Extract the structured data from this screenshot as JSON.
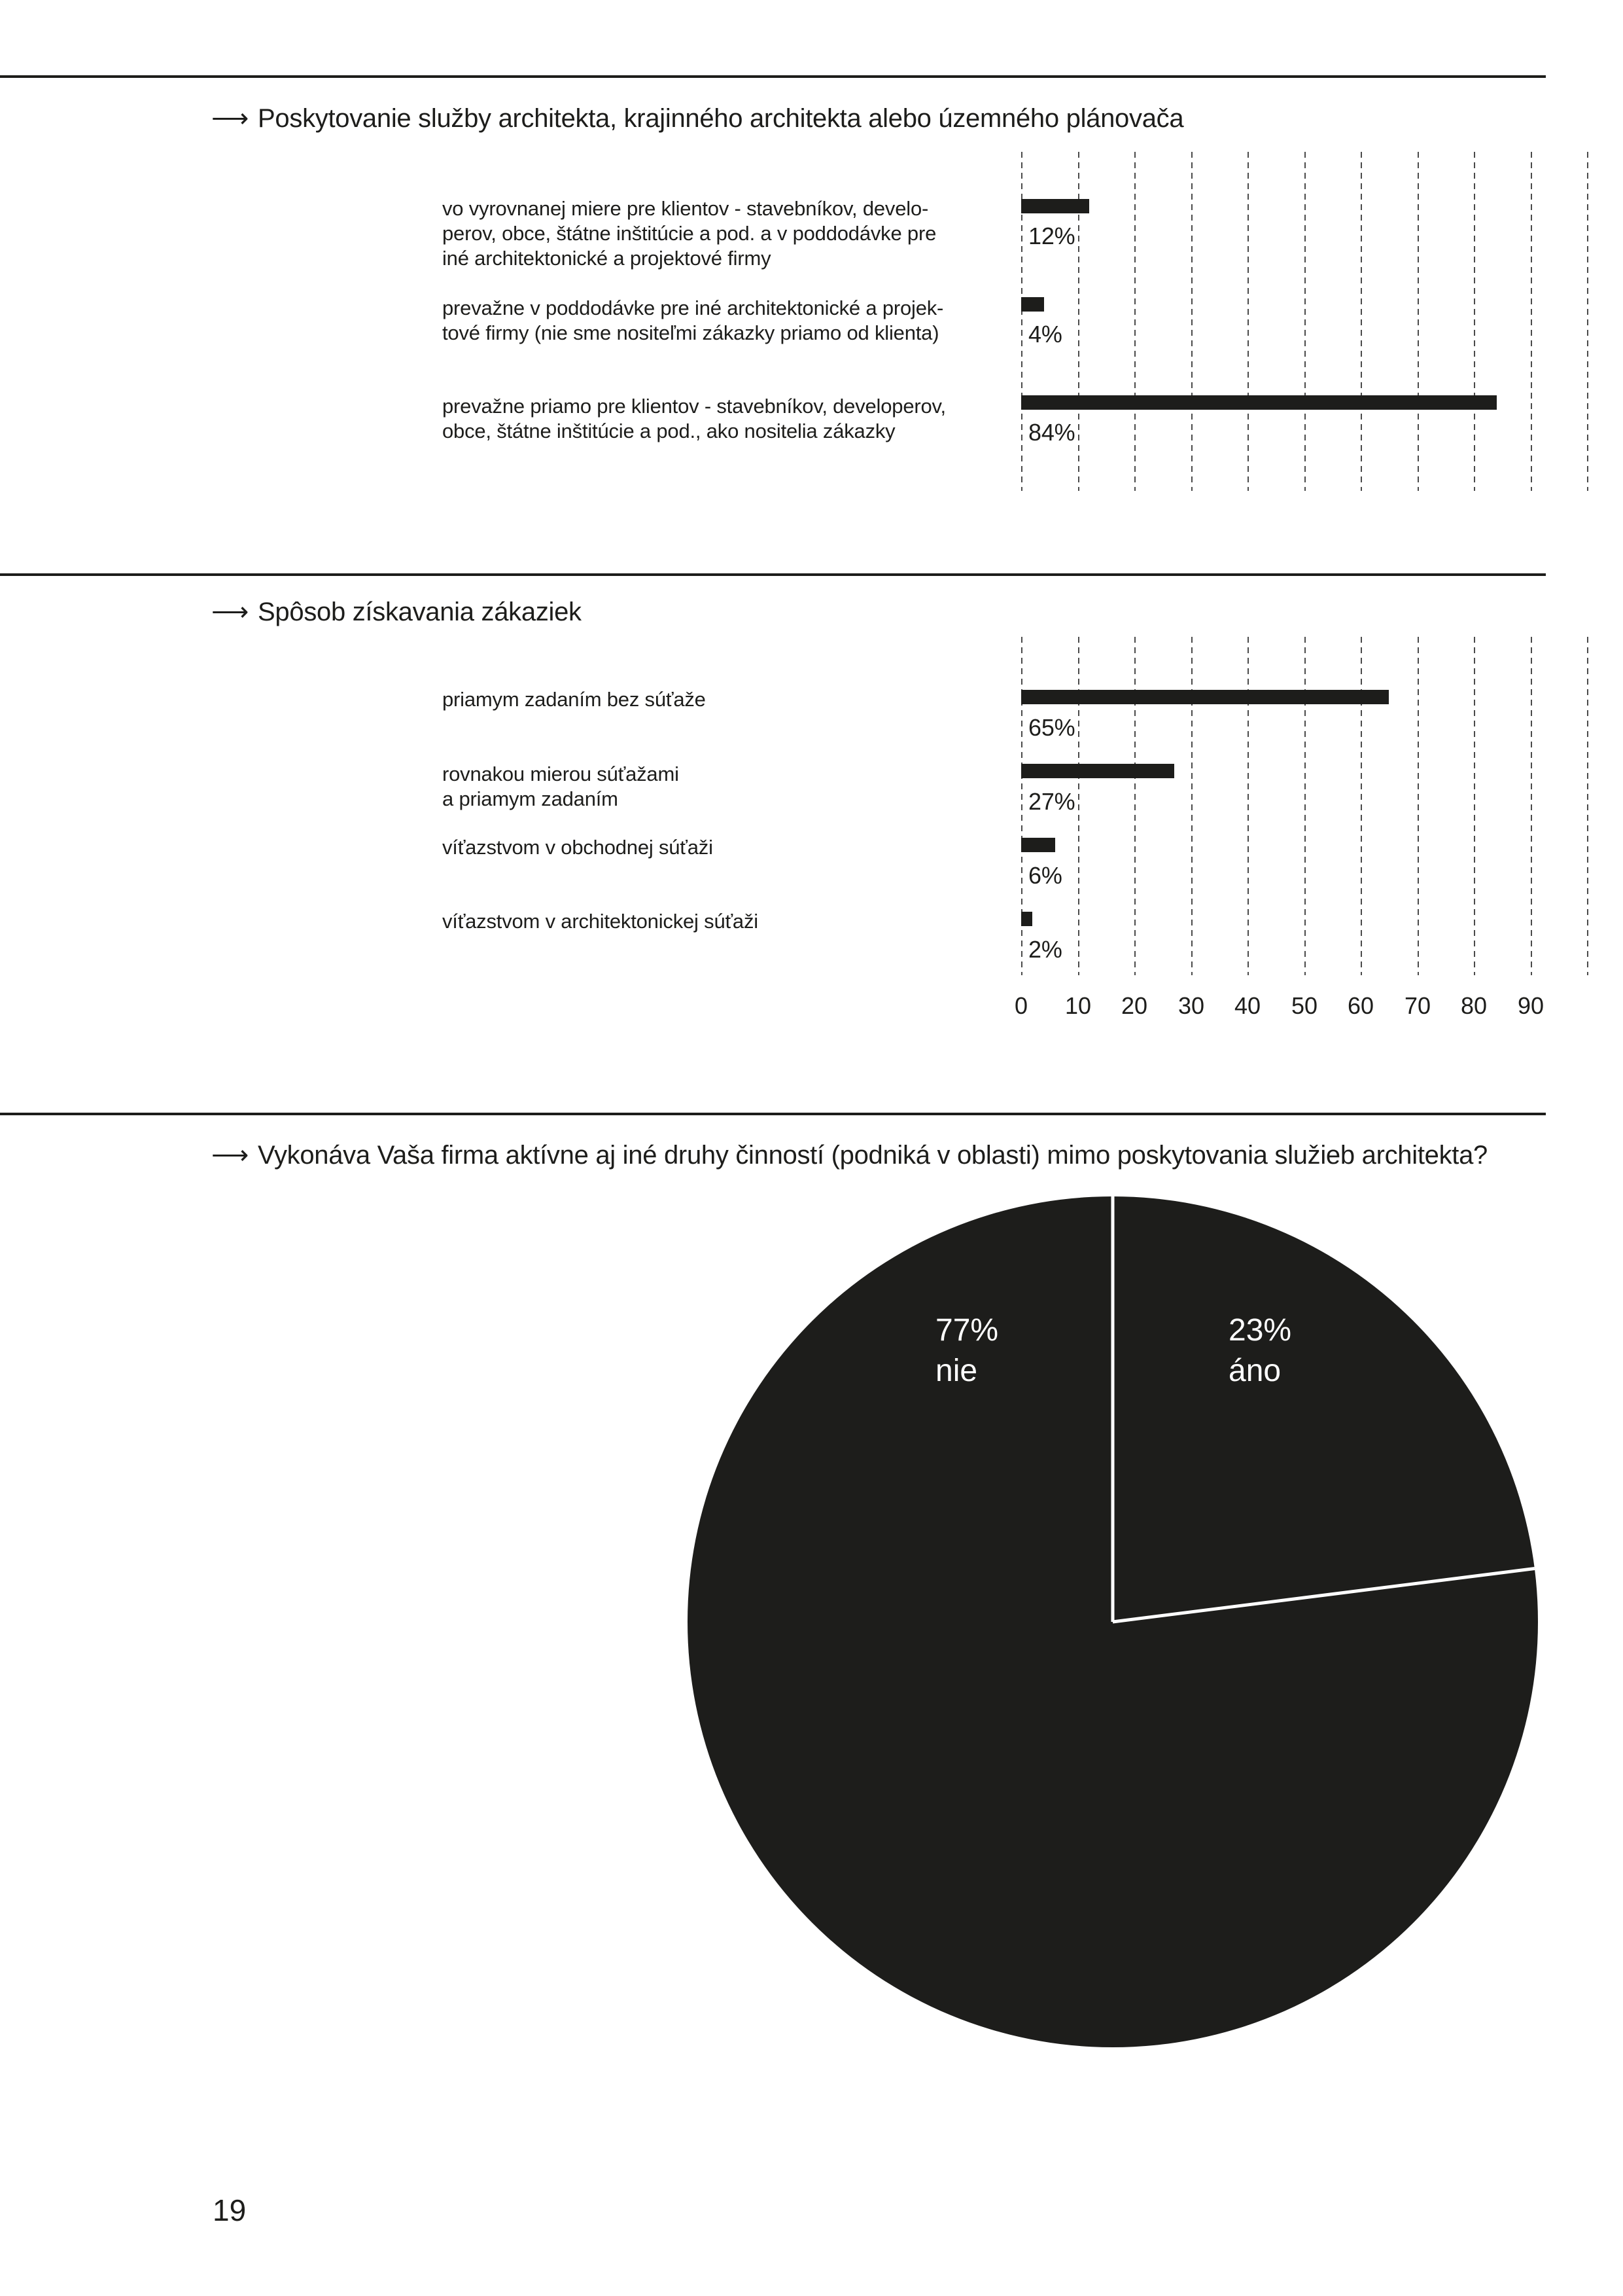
{
  "page": {
    "number": "19",
    "arrow": "⟶"
  },
  "colors": {
    "ink": "#1d1d1b",
    "grid_dash": "#4a4a4a",
    "pie_fill": "#1d1d1b",
    "pie_divider": "#ffffff",
    "background": "#ffffff"
  },
  "chart_data": [
    {
      "type": "bar",
      "orientation": "horizontal",
      "title": "Poskytovanie služby architekta, krajinného architekta alebo územného plánovača",
      "categories": [
        "vo vyrovnanej miere pre klientov - stavebníkov, develo-\nperov, obce, štátne inštitúcie a pod. a v poddodávke pre\niné architektonické a projektové firmy",
        "prevažne v poddodávke pre iné architektonické a projek-\ntové firmy (nie sme nositeľmi zákazky priamo od klienta)",
        "prevažne priamo pre klientov - stavebníkov, developerov,\nobce, štátne inštitúcie a pod., ako nositelia zákazky"
      ],
      "values": [
        12,
        4,
        84
      ],
      "value_labels": [
        "12%",
        "4%",
        "84%"
      ],
      "unit": "%",
      "xlim": [
        0,
        100
      ],
      "grid_step": 10,
      "grid": true,
      "xticks_visible": false
    },
    {
      "type": "bar",
      "orientation": "horizontal",
      "title": "Spôsob získavania zákaziek",
      "categories": [
        "priamym zadaním bez súťaže",
        "rovnakou mierou súťažami\na priamym zadaním",
        "víťazstvom v obchodnej súťaži",
        "víťazstvom v architektonickej súťaži"
      ],
      "values": [
        65,
        27,
        6,
        2
      ],
      "value_labels": [
        "65%",
        "27%",
        "6%",
        "2%"
      ],
      "unit": "%",
      "xlim": [
        0,
        100
      ],
      "grid_step": 10,
      "grid": true,
      "xticks_visible": true,
      "xticks": [
        0,
        10,
        20,
        30,
        40,
        50,
        60,
        70,
        80,
        90
      ]
    },
    {
      "type": "pie",
      "title": "Vykonáva Vaša firma aktívne aj iné druhy činností (podniká v oblasti) mimo poskytovania služieb architekta?",
      "slices": [
        {
          "label": "áno",
          "value": 23,
          "value_label": "23%"
        },
        {
          "label": "nie",
          "value": 77,
          "value_label": "77%"
        }
      ],
      "start_angle_deg": 0,
      "direction": "clockwise",
      "legend_position": "inside"
    }
  ]
}
